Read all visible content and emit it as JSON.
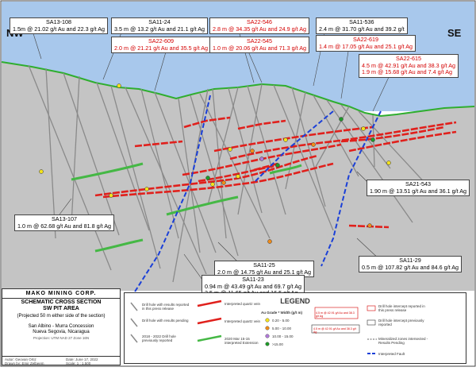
{
  "section": {
    "nw_label": "NW",
    "se_label": "SE",
    "colors": {
      "sky": "#a8c8ec",
      "rock": "#c4c4c4",
      "topography": "#2fae2f",
      "zone_red": "#e0201c",
      "zone_green": "#45b845",
      "fault": "#1a3fd8",
      "drillhole": "#8a8a8a"
    }
  },
  "callouts": [
    {
      "hole": "SA13-108",
      "line1": "1.5m @ 21.02 g/t Au and 22.3 g/t Ag",
      "line2": "",
      "red": false
    },
    {
      "hole": "SA11-24",
      "line1": "3.5 m @ 13.2 g/t Au and 21.1 g/t Ag",
      "line2": "",
      "red": false
    },
    {
      "hole": "SA22-609",
      "line1": "2.0 m @ 21.21 g/t Au and 35.5 g/t Ag",
      "line2": "",
      "red": true
    },
    {
      "hole": "SA22-546",
      "line1": "2.8 m @ 34.35 g/t Au and 24.9 g/t Ag",
      "line2": "",
      "red": true
    },
    {
      "hole": "SA22-545",
      "line1": "1.0 m @ 20.06 g/t Au and 71.3 g/t Ag",
      "line2": "",
      "red": true
    },
    {
      "hole": "SA11-536",
      "line1": "2.4 m @ 31.70 g/t Au and 39.2 g/t",
      "line2": "",
      "red": false
    },
    {
      "hole": "SA22-619",
      "line1": "1.4 m @ 17.05 g/t Au and 25.1 g/t Ag",
      "line2": "",
      "red": true
    },
    {
      "hole": "SA22-615",
      "line1": "4.5 m @ 42.91 g/t Au and 38.3 g/t Ag",
      "line2": "1.9 m @ 15.68 g/t Au and 7.4 g/t Ag",
      "red": true
    },
    {
      "hole": "SA21-543",
      "line1": "1.90 m @ 13.51 g/t Au and 36.1 g/t Ag",
      "line2": "",
      "red": false
    },
    {
      "hole": "SA13-107",
      "line1": "1.0 m @ 62.68 g/t Au and 81.8 g/t Ag",
      "line2": "",
      "red": false
    },
    {
      "hole": "SA11-25",
      "line1": "2.0 m @ 14.75 g/t Au and 25.1 g/t Ag",
      "line2": "",
      "red": false
    },
    {
      "hole": "SA11-23",
      "line1": "0.94 m @ 43.49 g/t Au and 69.7 g/t Ag",
      "line2": "3.5 m @ 11.65 g/t Au and 16.5 g/t Ag",
      "red": false
    },
    {
      "hole": "SA11-29",
      "line1": "0.5 m @ 107.82 g/t Au and 84.6 g/t Ag",
      "line2": "",
      "red": false
    }
  ],
  "title_block": {
    "company": "MAKO MINING CORP.",
    "title_line1": "SCHEMATIC CROSS SECTION",
    "title_line2": "SW PIT AREA",
    "projection": "(Projected 50 m  either side of the section)",
    "concession": "San Albino - Murra Concession",
    "region": "Nueva Segovia, Nicaragua",
    "datum": "Projection: UTM NAD 27  Zone 16N",
    "author": "Autor: Geovan Ortiz",
    "date": "Date: June 17, 2022",
    "drawn": "Drawn by: Emir Zelbeem",
    "scale": "Scale: 1 : 1,500"
  },
  "legend": {
    "title": "LEGEND",
    "drill_reported": "Drill hole with results reported in this press release",
    "drill_pending": "Drill hole with results pending",
    "drill_previous": "2018 - 2022 Drill hole previously reported",
    "interpreted_quartz": "Interpreted quartz vein",
    "interpreted_quartz2": "Interpreted quartz vein",
    "green_vein": "2020 Mar 15-15 interpreted Extension",
    "grade_header": "Au Grade * Width (g/t m)",
    "grade_bins": [
      "0.20 - 5.00",
      "5.00 - 10.00",
      "10.00 - 15.00",
      ">15.00"
    ],
    "intercept_label": "4.5 m @ 42.91 g/t Au and 38.3 g/t Ag",
    "intercept_reported": "Drill hole intercept reported in this press release",
    "intercept_previous": "Drill hole intercept previously reported",
    "mineralized_zone": "Mineralized zones intersected - Results Pending",
    "interpreted_fault": "Interpreted Fault",
    "grade_colors": [
      "#f3e21c",
      "#f08c1a",
      "#b07ad8",
      "#1f9a2a"
    ]
  }
}
